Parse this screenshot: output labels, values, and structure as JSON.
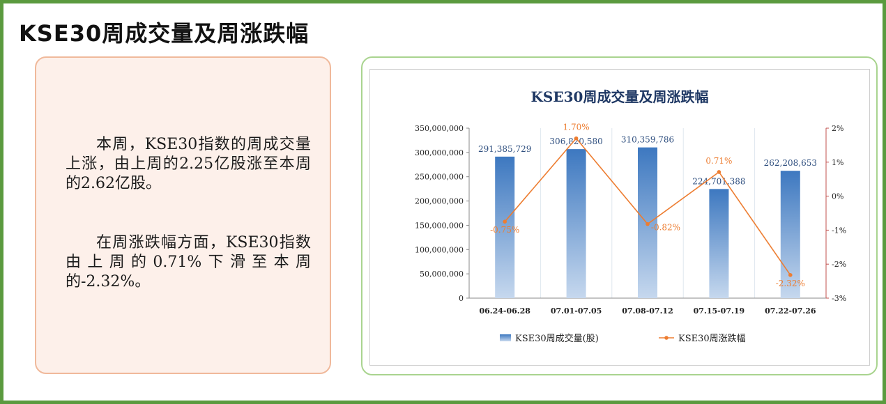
{
  "page": {
    "title": "KSE30周成交量及周涨跌幅"
  },
  "text_card": {
    "paragraph1": "本周，KSE30指数的周成交量上涨，由上周的2.25亿股涨至本周的2.62亿股。",
    "paragraph2": "在周涨跌幅方面，KSE30指数由上周的0.71%下滑至本周的-2.32%。"
  },
  "colors": {
    "frame": "#5b9a3f",
    "bar_top": "#3d78c0",
    "bar_bottom": "#c6d8ee",
    "line": "#ed7d31",
    "chart_title": "#1f3864"
  },
  "chart_data": {
    "type": "bar",
    "title": "KSE30周成交量及周涨跌幅",
    "categories": [
      "06.24-06.28",
      "07.01-07.05",
      "07.08-07.12",
      "07.15-07.19",
      "07.22-07.26"
    ],
    "series": [
      {
        "name": "KSE30周成交量(股)",
        "type": "bar",
        "axis": "left",
        "values": [
          291385729,
          306820580,
          310359786,
          224701388,
          262208653
        ],
        "labels": [
          "291,385,729",
          "306,820,580",
          "310,359,786",
          "224,701,388",
          "262,208,653"
        ]
      },
      {
        "name": "KSE30周涨跌幅",
        "type": "line",
        "axis": "right",
        "values": [
          -0.75,
          1.7,
          -0.82,
          0.71,
          -2.32
        ],
        "labels": [
          "-0.75%",
          "1.70%",
          "-0.82%",
          "0.71%",
          "-2.32%"
        ]
      }
    ],
    "y_left": {
      "range": [
        0,
        350000000
      ],
      "ticks": [
        0,
        50000000,
        100000000,
        150000000,
        200000000,
        250000000,
        300000000,
        350000000
      ],
      "tick_labels": [
        "0",
        "50,000,000",
        "100,000,000",
        "150,000,000",
        "200,000,000",
        "250,000,000",
        "300,000,000",
        "350,000,000"
      ]
    },
    "y_right": {
      "range": [
        -3,
        2
      ],
      "ticks": [
        -3,
        -2,
        -1,
        0,
        1,
        2
      ],
      "tick_labels": [
        "-3%",
        "-2%",
        "-1%",
        "0%",
        "1%",
        "2%"
      ]
    },
    "grid": false,
    "legend_position": "bottom"
  }
}
